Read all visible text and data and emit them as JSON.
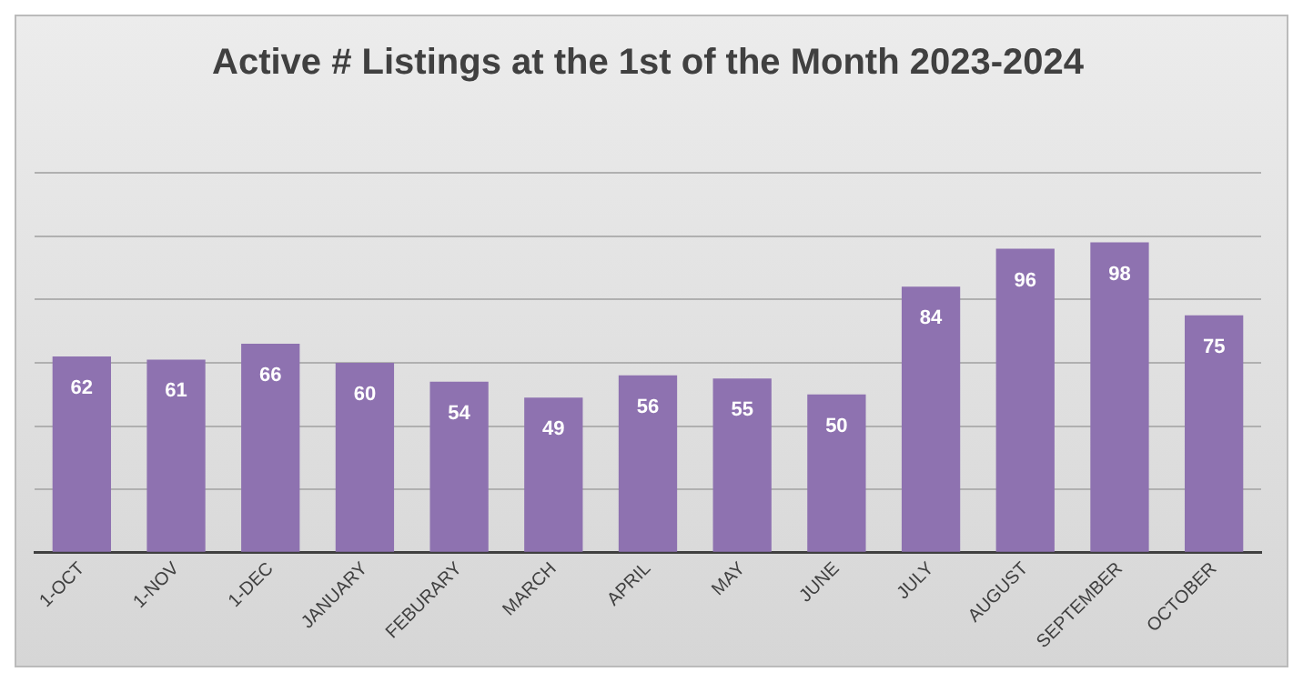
{
  "chart_data": {
    "type": "bar",
    "title": "Active # Listings at the 1st of the Month 2023-2024",
    "categories": [
      "1-OCT",
      "1-NOV",
      "1-DEC",
      "JANUARY",
      "FEBURARY",
      "MARCH",
      "APRIL",
      "MAY",
      "JUNE",
      "JULY",
      "AUGUST",
      "SEPTEMBER",
      "OCTOBER"
    ],
    "values": [
      62,
      61,
      66,
      60,
      54,
      49,
      56,
      55,
      50,
      84,
      96,
      98,
      75
    ],
    "color": "#8e72b0",
    "data_labels": true,
    "grid": "y",
    "legend": false,
    "tick_labels": "x",
    "ylim": [
      0,
      120
    ],
    "yticks": [
      {
        "value": 0,
        "label": null
      },
      {
        "value": 20,
        "label": null
      },
      {
        "value": 40,
        "label": null
      },
      {
        "value": 60,
        "label": null
      },
      {
        "value": 80,
        "label": null
      },
      {
        "value": 100,
        "label": null
      },
      {
        "value": 120,
        "label": null
      }
    ]
  }
}
